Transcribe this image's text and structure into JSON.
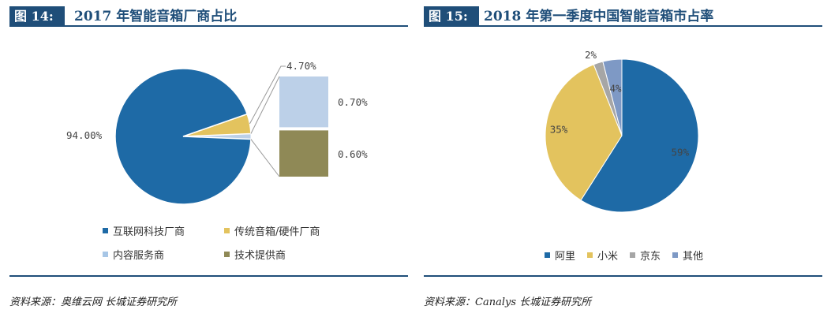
{
  "left": {
    "tag": "图 14:",
    "title": "2017 年智能音箱厂商占比",
    "source": "资料来源：奥维云网  长城证券研究所",
    "colors": {
      "blue": "#1e6aa6",
      "gold": "#e3c35e",
      "lightblue": "#a7c6e6",
      "olive": "#8f8956",
      "pale": "#bcd0e8"
    },
    "legend": [
      "互联网科技厂商",
      "传统音箱/硬件厂商",
      "内容服务商",
      "技术提供商"
    ],
    "chart_data": {
      "type": "pie",
      "slices": [
        {
          "label": "互联网科技厂商",
          "value": 94.0,
          "display": "94.00%"
        },
        {
          "label": "传统音箱/硬件厂商",
          "value": 4.7,
          "display": "4.70%"
        },
        {
          "label": "内容服务商",
          "value": 0.7,
          "display": "0.70%"
        },
        {
          "label": "技术提供商",
          "value": 0.6,
          "display": "0.60%"
        }
      ],
      "breakout": {
        "parts": [
          {
            "label": "内容服务商",
            "value": 0.7,
            "display": "0.70%"
          },
          {
            "label": "技术提供商",
            "value": 0.6,
            "display": "0.60%"
          }
        ]
      }
    }
  },
  "right": {
    "tag": "图 15:",
    "title": "2018 年第一季度中国智能音箱市占率",
    "source": "资料来源：Canalys  长城证券研究所",
    "colors": {
      "blue": "#1e6aa6",
      "gold": "#e3c35e",
      "gray": "#a6a6a6",
      "slate": "#7e99c5"
    },
    "legend": [
      "阿里",
      "小米",
      "京东",
      "其他"
    ],
    "chart_data": {
      "type": "pie",
      "slices": [
        {
          "label": "阿里",
          "value": 59,
          "display": "59%"
        },
        {
          "label": "小米",
          "value": 35,
          "display": "35%"
        },
        {
          "label": "京东",
          "value": 2,
          "display": "2%"
        },
        {
          "label": "其他",
          "value": 4,
          "display": "4%"
        }
      ]
    }
  }
}
